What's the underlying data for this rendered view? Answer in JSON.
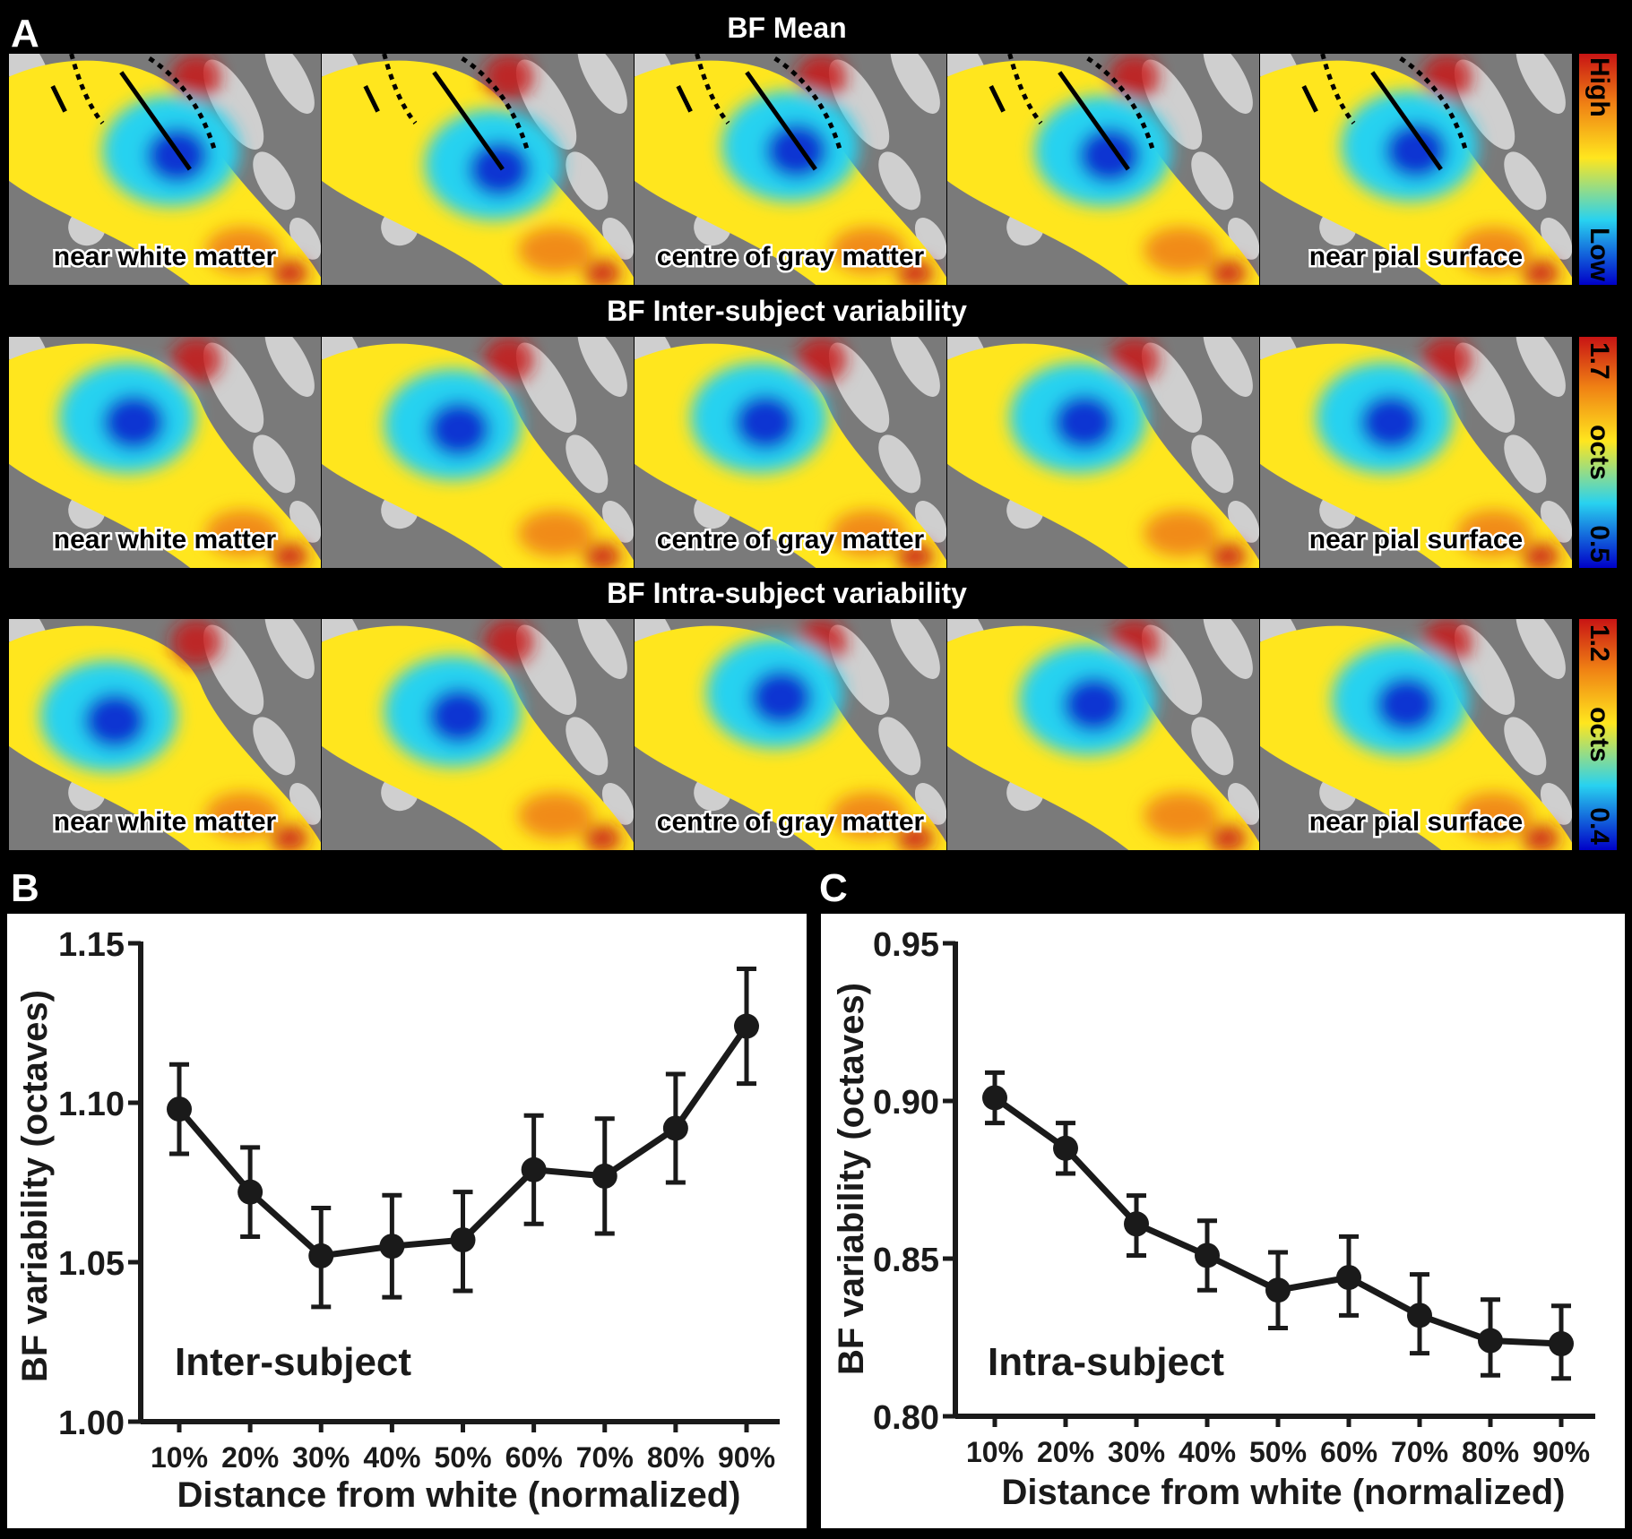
{
  "panel_letters": {
    "a": "A",
    "b": "B",
    "c": "C"
  },
  "panel_a": {
    "rows": [
      {
        "title": "BF Mean",
        "scale_top": "High",
        "scale_mid": "",
        "scale_bottom": "Low",
        "labels": [
          "near white matter",
          "centre of gray matter",
          "near pial surface"
        ]
      },
      {
        "title": "BF Inter-subject variability",
        "scale_top": "1.7",
        "scale_mid": "octs",
        "scale_bottom": "0.5",
        "labels": [
          "near white matter",
          "centre of gray matter",
          "near pial surface"
        ]
      },
      {
        "title": "BF Intra-subject variability",
        "scale_top": "1.2",
        "scale_mid": "octs",
        "scale_bottom": "0.4",
        "labels": [
          "near white matter",
          "centre of gray matter",
          "near pial surface"
        ]
      }
    ],
    "colors": {
      "low": "#0000c8",
      "cyan": "#28d2f0",
      "yellow": "#ffe61e",
      "orange": "#f08214",
      "high": "#c81414",
      "brain_gray": "#7a7a7a"
    }
  },
  "chart_data": [
    {
      "panel": "B",
      "type": "line",
      "annotation": "Inter-subject",
      "xlabel": "Distance from white (normalized)",
      "ylabel": "BF variability (octaves)",
      "categories": [
        "10%",
        "20%",
        "30%",
        "40%",
        "50%",
        "60%",
        "70%",
        "80%",
        "90%"
      ],
      "values": [
        1.098,
        1.072,
        1.052,
        1.055,
        1.057,
        1.079,
        1.077,
        1.092,
        1.124
      ],
      "err_lower": [
        1.084,
        1.058,
        1.036,
        1.039,
        1.041,
        1.062,
        1.059,
        1.075,
        1.106
      ],
      "err_upper": [
        1.112,
        1.086,
        1.067,
        1.071,
        1.072,
        1.096,
        1.095,
        1.109,
        1.142
      ],
      "yticks": [
        "1.00",
        "1.05",
        "1.10",
        "1.15"
      ],
      "ylim": [
        1.0,
        1.15
      ]
    },
    {
      "panel": "C",
      "type": "line",
      "annotation": "Intra-subject",
      "xlabel": "Distance from white (normalized)",
      "ylabel": "BF variability (octaves)",
      "categories": [
        "10%",
        "20%",
        "30%",
        "40%",
        "50%",
        "60%",
        "70%",
        "80%",
        "90%"
      ],
      "values": [
        0.901,
        0.885,
        0.861,
        0.851,
        0.84,
        0.844,
        0.832,
        0.824,
        0.823
      ],
      "err_lower": [
        0.893,
        0.877,
        0.851,
        0.84,
        0.828,
        0.832,
        0.82,
        0.813,
        0.812
      ],
      "err_upper": [
        0.909,
        0.893,
        0.87,
        0.862,
        0.852,
        0.857,
        0.845,
        0.837,
        0.835
      ],
      "yticks": [
        "0.80",
        "0.85",
        "0.90",
        "0.95"
      ],
      "ylim": [
        0.8,
        0.95
      ]
    }
  ]
}
